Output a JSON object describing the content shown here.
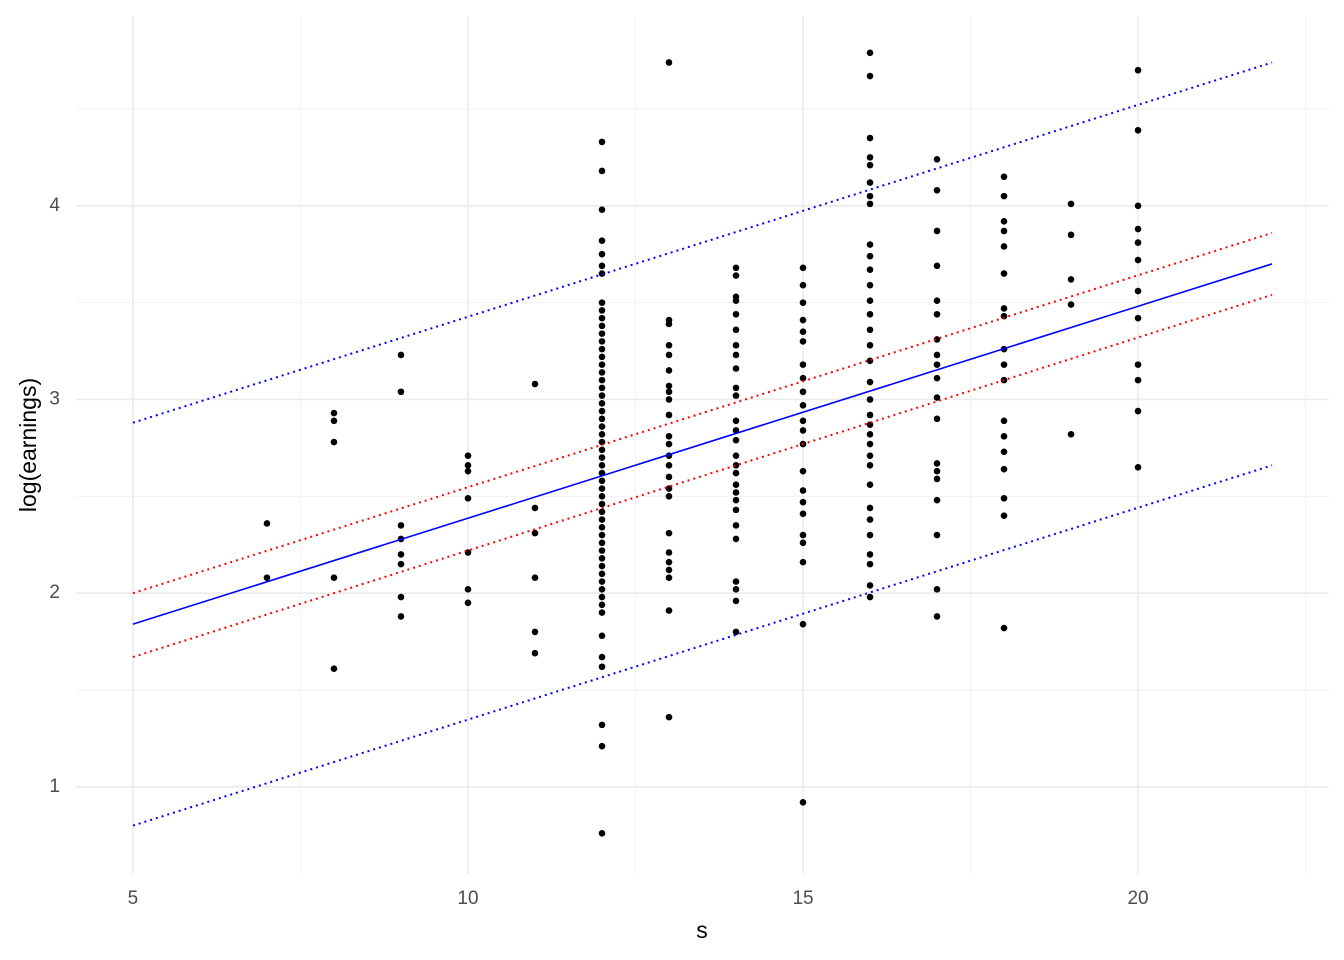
{
  "chart_data": {
    "type": "scatter",
    "xlabel": "s",
    "ylabel": "log(earnings)",
    "xlim": [
      4.15,
      22.85
    ],
    "ylim": [
      0.55,
      4.98
    ],
    "xticks": [
      5,
      10,
      15,
      20
    ],
    "yticks": [
      1,
      2,
      3,
      4
    ],
    "xminorticks": [
      7.5,
      12.5,
      17.5,
      22.5
    ],
    "yminorticks": [
      1.5,
      2.5,
      3.5,
      4.5
    ],
    "grid": true,
    "color": "#000000",
    "x": [
      7,
      7,
      8,
      8,
      8,
      8,
      8,
      9,
      9,
      9,
      9,
      9,
      9,
      9,
      9,
      10,
      10,
      10,
      10,
      10,
      10,
      10,
      11,
      11,
      11,
      11,
      11,
      11,
      12,
      12,
      12,
      12,
      12,
      12,
      12,
      12,
      12,
      12,
      12,
      12,
      12,
      12,
      12,
      12,
      12,
      12,
      12,
      12,
      12,
      12,
      12,
      12,
      12,
      12,
      12,
      12,
      12,
      12,
      12,
      12,
      12,
      12,
      12,
      12,
      12,
      12,
      12,
      12,
      12,
      12,
      12,
      12,
      12,
      12,
      12,
      12,
      12,
      12,
      12,
      12,
      12,
      12,
      13,
      13,
      13,
      13,
      13,
      13,
      13,
      13,
      13,
      13,
      13,
      13,
      13,
      13,
      13,
      13,
      13,
      13,
      13,
      13,
      13,
      13,
      13,
      13,
      14,
      14,
      14,
      14,
      14,
      14,
      14,
      14,
      14,
      14,
      14,
      14,
      14,
      14,
      14,
      14,
      14,
      14,
      14,
      14,
      14,
      14,
      14,
      14,
      14,
      14,
      14,
      15,
      15,
      15,
      15,
      15,
      15,
      15,
      15,
      15,
      15,
      15,
      15,
      15,
      15,
      15,
      15,
      15,
      15,
      15,
      15,
      15,
      15,
      16,
      16,
      16,
      16,
      16,
      16,
      16,
      16,
      16,
      16,
      16,
      16,
      16,
      16,
      16,
      16,
      16,
      16,
      16,
      16,
      16,
      16,
      16,
      16,
      16,
      16,
      16,
      16,
      16,
      16,
      16,
      16,
      16,
      17,
      17,
      17,
      17,
      17,
      17,
      17,
      17,
      17,
      17,
      17,
      17,
      17,
      17,
      17,
      17,
      17,
      17,
      17,
      18,
      18,
      18,
      18,
      18,
      18,
      18,
      18,
      18,
      18,
      18,
      18,
      18,
      18,
      18,
      18,
      18,
      18,
      19,
      19,
      19,
      19,
      19,
      20,
      20,
      20,
      20,
      20,
      20,
      20,
      20,
      20,
      20,
      20,
      20
    ],
    "values": [
      2.36,
      2.08,
      2.93,
      2.89,
      2.78,
      2.08,
      1.61,
      3.23,
      3.04,
      2.35,
      2.28,
      2.2,
      2.15,
      1.98,
      1.88,
      2.71,
      2.66,
      2.63,
      2.49,
      2.21,
      2.02,
      1.95,
      3.08,
      2.44,
      2.31,
      2.08,
      1.8,
      1.69,
      4.33,
      4.18,
      3.98,
      3.82,
      3.75,
      3.69,
      3.65,
      3.5,
      3.46,
      3.42,
      3.38,
      3.34,
      3.3,
      3.26,
      3.22,
      3.18,
      3.14,
      3.1,
      3.06,
      3.02,
      2.98,
      2.94,
      2.9,
      2.86,
      2.82,
      2.78,
      2.74,
      2.7,
      2.66,
      2.62,
      2.58,
      2.54,
      2.5,
      2.46,
      2.42,
      2.38,
      2.34,
      2.3,
      2.26,
      2.22,
      2.18,
      2.14,
      2.1,
      2.06,
      2.02,
      1.98,
      1.94,
      1.9,
      1.78,
      1.67,
      1.62,
      1.32,
      1.21,
      0.76,
      4.74,
      3.41,
      3.39,
      3.28,
      3.23,
      3.15,
      3.07,
      3.04,
      3.0,
      2.92,
      2.81,
      2.77,
      2.71,
      2.66,
      2.6,
      2.54,
      2.5,
      2.31,
      2.21,
      2.16,
      2.12,
      2.08,
      1.91,
      1.36,
      3.68,
      3.64,
      3.53,
      3.51,
      3.44,
      3.36,
      3.28,
      3.23,
      3.16,
      3.06,
      3.02,
      2.89,
      2.84,
      2.79,
      2.71,
      2.66,
      2.62,
      2.56,
      2.52,
      2.48,
      2.43,
      2.35,
      2.28,
      2.06,
      2.02,
      1.96,
      1.8,
      3.68,
      3.59,
      3.5,
      3.41,
      3.35,
      3.3,
      3.18,
      3.11,
      3.04,
      2.97,
      2.89,
      2.84,
      2.77,
      2.63,
      2.53,
      2.47,
      2.41,
      2.3,
      2.26,
      2.16,
      1.84,
      0.92,
      4.79,
      4.67,
      4.35,
      4.25,
      4.21,
      4.12,
      4.05,
      4.01,
      3.8,
      3.74,
      3.67,
      3.59,
      3.51,
      3.44,
      3.36,
      3.28,
      3.2,
      3.09,
      3.0,
      2.92,
      2.87,
      2.82,
      2.77,
      2.71,
      2.66,
      2.56,
      2.44,
      2.38,
      2.3,
      2.2,
      2.15,
      2.04,
      1.98,
      4.24,
      4.08,
      3.87,
      3.69,
      3.51,
      3.44,
      3.31,
      3.23,
      3.18,
      3.11,
      3.01,
      2.9,
      2.67,
      2.63,
      2.59,
      2.48,
      2.3,
      2.02,
      1.88,
      4.15,
      4.05,
      3.92,
      3.87,
      3.79,
      3.65,
      3.47,
      3.43,
      3.26,
      3.18,
      3.1,
      2.89,
      2.81,
      2.73,
      2.64,
      2.49,
      2.4,
      1.82,
      4.01,
      3.85,
      3.62,
      3.49,
      2.82,
      4.7,
      4.39,
      4.0,
      3.88,
      3.81,
      3.72,
      3.56,
      3.42,
      3.18,
      3.1,
      2.94,
      2.65
    ],
    "lines": [
      {
        "x": [
          5,
          22
        ],
        "values": [
          2.88,
          4.74
        ],
        "color": "#0000ff",
        "dotted": true
      },
      {
        "x": [
          5,
          22
        ],
        "values": [
          0.8,
          2.66
        ],
        "color": "#0000ff",
        "dotted": true
      },
      {
        "x": [
          5,
          22
        ],
        "values": [
          2.0,
          3.86
        ],
        "color": "#ff0000",
        "dotted": true
      },
      {
        "x": [
          5,
          22
        ],
        "values": [
          1.67,
          3.54
        ],
        "color": "#ff0000",
        "dotted": true
      },
      {
        "x": [
          5,
          22
        ],
        "values": [
          1.84,
          3.7
        ],
        "color": "#0000ff",
        "dotted": false
      }
    ]
  }
}
